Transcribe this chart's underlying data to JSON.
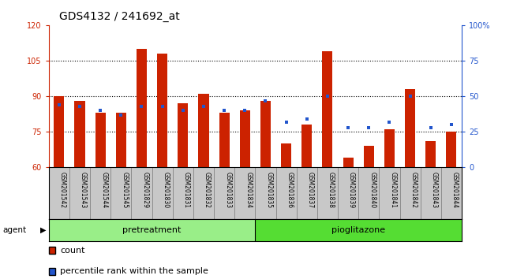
{
  "title": "GDS4132 / 241692_at",
  "samples": [
    "GSM201542",
    "GSM201543",
    "GSM201544",
    "GSM201545",
    "GSM201829",
    "GSM201830",
    "GSM201831",
    "GSM201832",
    "GSM201833",
    "GSM201834",
    "GSM201835",
    "GSM201836",
    "GSM201837",
    "GSM201838",
    "GSM201839",
    "GSM201840",
    "GSM201841",
    "GSM201842",
    "GSM201843",
    "GSM201844"
  ],
  "bar_values": [
    90,
    88,
    83,
    83,
    110,
    108,
    87,
    91,
    83,
    84,
    88,
    70,
    78,
    109,
    64,
    69,
    76,
    93,
    71,
    75
  ],
  "percentile_values": [
    44,
    43,
    40,
    37,
    43,
    43,
    40,
    43,
    40,
    40,
    47,
    32,
    34,
    50,
    28,
    28,
    32,
    50,
    28,
    30
  ],
  "bar_color": "#cc2200",
  "dot_color": "#2255cc",
  "ylim_left": [
    60,
    120
  ],
  "ylim_right": [
    0,
    100
  ],
  "yticks_left": [
    60,
    75,
    90,
    105,
    120
  ],
  "yticks_right": [
    0,
    25,
    50,
    75,
    100
  ],
  "ytick_labels_right": [
    "0",
    "25",
    "50",
    "75",
    "100%"
  ],
  "hlines": [
    75,
    90,
    105
  ],
  "bar_width": 0.5,
  "pretreatment_count": 10,
  "pioglitazone_count": 10,
  "pretreatment_label": "pretreatment",
  "pioglitazone_label": "pioglitazone",
  "agent_label": "agent",
  "legend_count_label": "count",
  "legend_pct_label": "percentile rank within the sample",
  "pretreatment_color": "#99ee88",
  "pioglitazone_color": "#55dd33",
  "bg_color": "#c8c8c8",
  "title_fontsize": 10,
  "tick_fontsize": 7,
  "axis_color_left": "#cc2200",
  "axis_color_right": "#2255cc",
  "legend_fontsize": 8
}
